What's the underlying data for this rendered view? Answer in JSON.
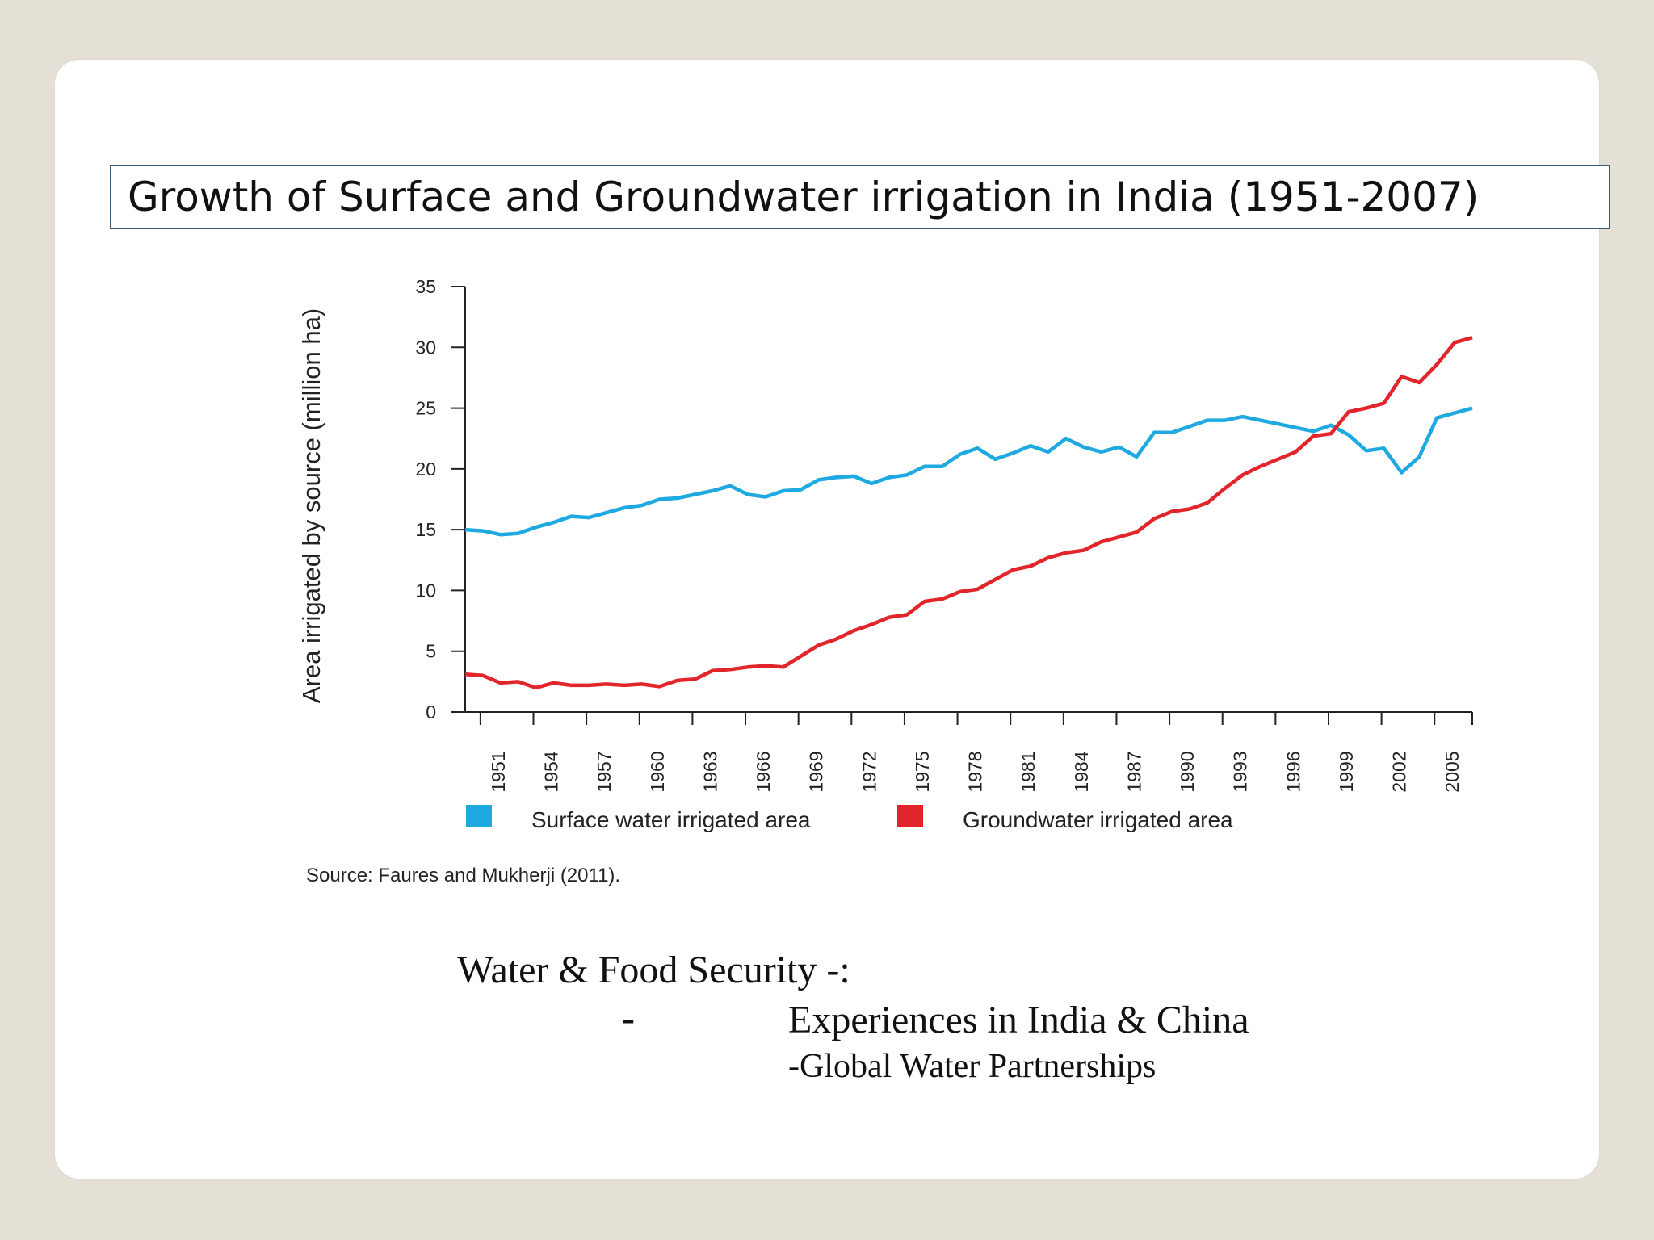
{
  "slide": {
    "title": "Growth of Surface and Groundwater irrigation in India (1951-2007)",
    "source": "Source: Faures and Mukherji (2011).",
    "footer": {
      "line1": "Water & Food Security -:",
      "dash": "-",
      "line2": "Experiences in India & China",
      "line3": "-Global Water Partnerships"
    }
  },
  "chart_data": {
    "type": "line",
    "ylabel": "Area irrigated by source (million ha)",
    "ylim": [
      0,
      35
    ],
    "yticks": [
      0,
      5,
      10,
      15,
      20,
      25,
      30,
      35
    ],
    "xlim": [
      1950,
      2007
    ],
    "xticks": [
      1951,
      1954,
      1957,
      1960,
      1963,
      1966,
      1969,
      1972,
      1975,
      1978,
      1981,
      1984,
      1987,
      1990,
      1993,
      1996,
      1999,
      2002,
      2005
    ],
    "legend_position": "bottom",
    "grid": false,
    "series": [
      {
        "name": "Surface water irrigated area",
        "color": "#1ea9e1",
        "x": [
          1950,
          1951,
          1952,
          1953,
          1954,
          1955,
          1956,
          1957,
          1958,
          1959,
          1960,
          1961,
          1962,
          1963,
          1964,
          1965,
          1966,
          1967,
          1968,
          1969,
          1970,
          1971,
          1972,
          1973,
          1974,
          1975,
          1976,
          1977,
          1978,
          1979,
          1980,
          1981,
          1982,
          1983,
          1984,
          1985,
          1986,
          1987,
          1988,
          1989,
          1990,
          1991,
          1992,
          1993,
          1994,
          1995,
          1996,
          1997,
          1998,
          1999,
          2000,
          2001,
          2002,
          2003,
          2004,
          2005,
          2006,
          2007
        ],
        "values": [
          15.0,
          14.9,
          14.6,
          14.7,
          15.2,
          15.6,
          16.1,
          16.0,
          16.4,
          16.8,
          17.0,
          17.5,
          17.6,
          17.9,
          18.2,
          18.6,
          17.9,
          17.7,
          18.2,
          18.3,
          19.1,
          19.3,
          19.4,
          18.8,
          19.3,
          19.5,
          20.2,
          20.2,
          21.2,
          21.7,
          20.8,
          21.3,
          21.9,
          21.4,
          22.5,
          21.8,
          21.4,
          21.8,
          21.0,
          23.0,
          23.0,
          23.5,
          24.0,
          24.0,
          24.3,
          24.0,
          23.7,
          23.4,
          23.1,
          23.6,
          22.8,
          21.5,
          21.7,
          19.7,
          21.0,
          24.2,
          24.6,
          25.0
        ]
      },
      {
        "name": "Groundwater irrigated area",
        "color": "#e2252b",
        "x": [
          1950,
          1951,
          1952,
          1953,
          1954,
          1955,
          1956,
          1957,
          1958,
          1959,
          1960,
          1961,
          1962,
          1963,
          1964,
          1965,
          1966,
          1967,
          1968,
          1969,
          1970,
          1971,
          1972,
          1973,
          1974,
          1975,
          1976,
          1977,
          1978,
          1979,
          1980,
          1981,
          1982,
          1983,
          1984,
          1985,
          1986,
          1987,
          1988,
          1989,
          1990,
          1991,
          1992,
          1993,
          1994,
          1995,
          1996,
          1997,
          1998,
          1999,
          2000,
          2001,
          2002,
          2003,
          2004,
          2005,
          2006,
          2007
        ],
        "values": [
          3.1,
          3.0,
          2.4,
          2.5,
          2.0,
          2.4,
          2.2,
          2.2,
          2.3,
          2.2,
          2.3,
          2.1,
          2.6,
          2.7,
          3.4,
          3.5,
          3.7,
          3.8,
          3.7,
          4.6,
          5.5,
          6.0,
          6.7,
          7.2,
          7.8,
          8.0,
          9.1,
          9.3,
          9.9,
          10.1,
          10.9,
          11.7,
          12.0,
          12.7,
          13.1,
          13.3,
          14.0,
          14.4,
          14.8,
          15.9,
          16.5,
          16.7,
          17.2,
          18.4,
          19.5,
          20.2,
          20.8,
          21.4,
          22.7,
          22.9,
          24.7,
          25.0,
          25.4,
          27.6,
          27.1,
          28.6,
          30.4,
          30.8
        ]
      }
    ]
  }
}
